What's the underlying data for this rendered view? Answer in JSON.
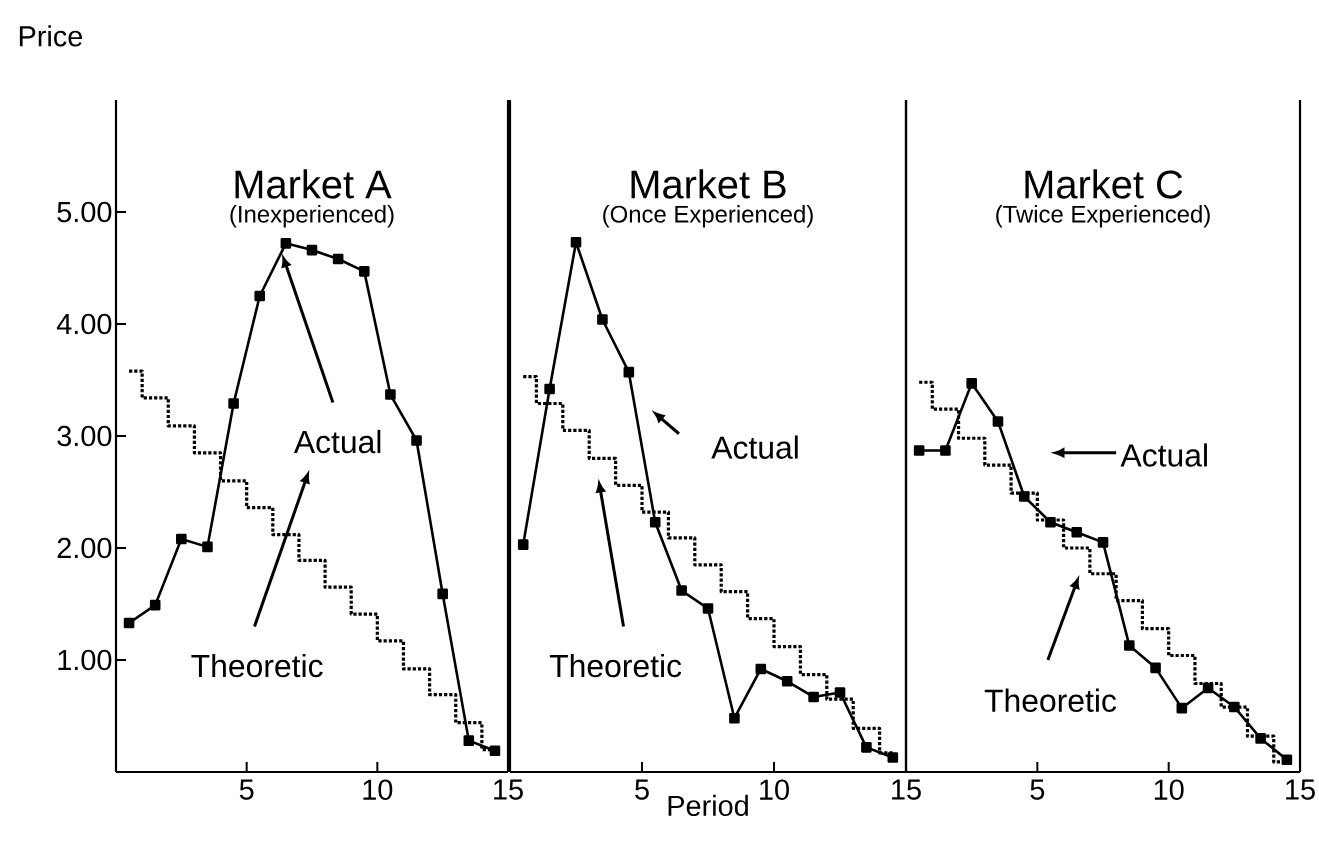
{
  "chart_data": [
    {
      "type": "line",
      "title": "Market A",
      "subtitle": "(Inexperienced)",
      "ylabel": "Price",
      "xlim": [
        0,
        15
      ],
      "ylim": [
        0,
        6
      ],
      "xticks": [
        5,
        10,
        15
      ],
      "yticks": [
        {
          "value": 1,
          "label": "1.00"
        },
        {
          "value": 2,
          "label": "2.00"
        },
        {
          "value": 3,
          "label": "3.00"
        },
        {
          "value": 4,
          "label": "4.00"
        },
        {
          "value": 5,
          "label": "5.00"
        }
      ],
      "annotations": [
        "Actual",
        "Theoretic"
      ],
      "series": [
        {
          "type": "line",
          "color": "#000000",
          "marker": "square",
          "line_style": "solid",
          "x": [
            0.5,
            1.5,
            2.5,
            3.5,
            4.5,
            5.5,
            6.5,
            7.5,
            8.5,
            9.5,
            10.5,
            11.5,
            12.5,
            13.5,
            14.5
          ],
          "values": [
            1.33,
            1.49,
            2.08,
            2.01,
            3.29,
            4.25,
            4.72,
            4.66,
            4.58,
            4.47,
            3.37,
            2.96,
            1.59,
            0.28,
            0.19
          ]
        },
        {
          "type": "step",
          "color": "#000000",
          "marker": "none",
          "line_style": "dotted",
          "x": [
            0.5,
            1.5,
            2.5,
            3.5,
            4.5,
            5.5,
            6.5,
            7.5,
            8.5,
            9.5,
            10.5,
            11.5,
            12.5,
            13.5,
            14.5
          ],
          "values": [
            3.58,
            3.34,
            3.09,
            2.85,
            2.6,
            2.36,
            2.12,
            1.89,
            1.65,
            1.41,
            1.17,
            0.92,
            0.69,
            0.44,
            0.2
          ]
        }
      ]
    },
    {
      "type": "line",
      "title": "Market B",
      "subtitle": "(Once Experienced)",
      "xlabel": "Period",
      "xlim": [
        0,
        15
      ],
      "ylim": [
        0,
        6
      ],
      "xticks": [
        5,
        10,
        15
      ],
      "tick_labels": "x",
      "annotations": [
        "Actual",
        "Theoretic"
      ],
      "series": [
        {
          "type": "line",
          "color": "#000000",
          "marker": "square",
          "line_style": "solid",
          "x": [
            0.5,
            1.5,
            2.5,
            3.5,
            4.5,
            5.5,
            6.5,
            7.5,
            8.5,
            9.5,
            10.5,
            11.5,
            12.5,
            13.5,
            14.5
          ],
          "values": [
            2.03,
            3.42,
            4.73,
            4.04,
            3.57,
            2.23,
            1.62,
            1.46,
            0.48,
            0.92,
            0.81,
            0.67,
            0.71,
            0.22,
            0.13
          ]
        },
        {
          "type": "step",
          "color": "#000000",
          "marker": "none",
          "line_style": "dotted",
          "x": [
            0.5,
            1.5,
            2.5,
            3.5,
            4.5,
            5.5,
            6.5,
            7.5,
            8.5,
            9.5,
            10.5,
            11.5,
            12.5,
            13.5,
            14.5
          ],
          "values": [
            3.53,
            3.29,
            3.05,
            2.8,
            2.56,
            2.32,
            2.09,
            1.85,
            1.61,
            1.37,
            1.12,
            0.87,
            0.65,
            0.39,
            0.17
          ]
        }
      ]
    },
    {
      "type": "line",
      "title": "Market C",
      "subtitle": "(Twice Experienced)",
      "xlim": [
        0,
        15
      ],
      "ylim": [
        0,
        6
      ],
      "xticks": [
        5,
        10,
        15
      ],
      "tick_labels": "x",
      "annotations": [
        "Actual",
        "Theoretic"
      ],
      "series": [
        {
          "type": "line",
          "color": "#000000",
          "marker": "square",
          "line_style": "solid",
          "x": [
            0.5,
            1.5,
            2.5,
            3.5,
            4.5,
            5.5,
            6.5,
            7.5,
            8.5,
            9.5,
            10.5,
            11.5,
            12.5,
            13.5,
            14.5
          ],
          "values": [
            2.87,
            2.87,
            3.47,
            3.13,
            2.46,
            2.23,
            2.14,
            2.05,
            1.13,
            0.93,
            0.57,
            0.75,
            0.58,
            0.3,
            0.11
          ]
        },
        {
          "type": "step",
          "color": "#000000",
          "marker": "none",
          "line_style": "dotted",
          "x": [
            0.5,
            1.5,
            2.5,
            3.5,
            4.5,
            5.5,
            6.5,
            7.5,
            8.5,
            9.5,
            10.5,
            11.5,
            12.5,
            13.5,
            14.5
          ],
          "values": [
            3.48,
            3.24,
            2.98,
            2.74,
            2.49,
            2.25,
            2.0,
            1.77,
            1.53,
            1.28,
            1.04,
            0.79,
            0.58,
            0.32,
            0.09
          ]
        }
      ]
    }
  ]
}
